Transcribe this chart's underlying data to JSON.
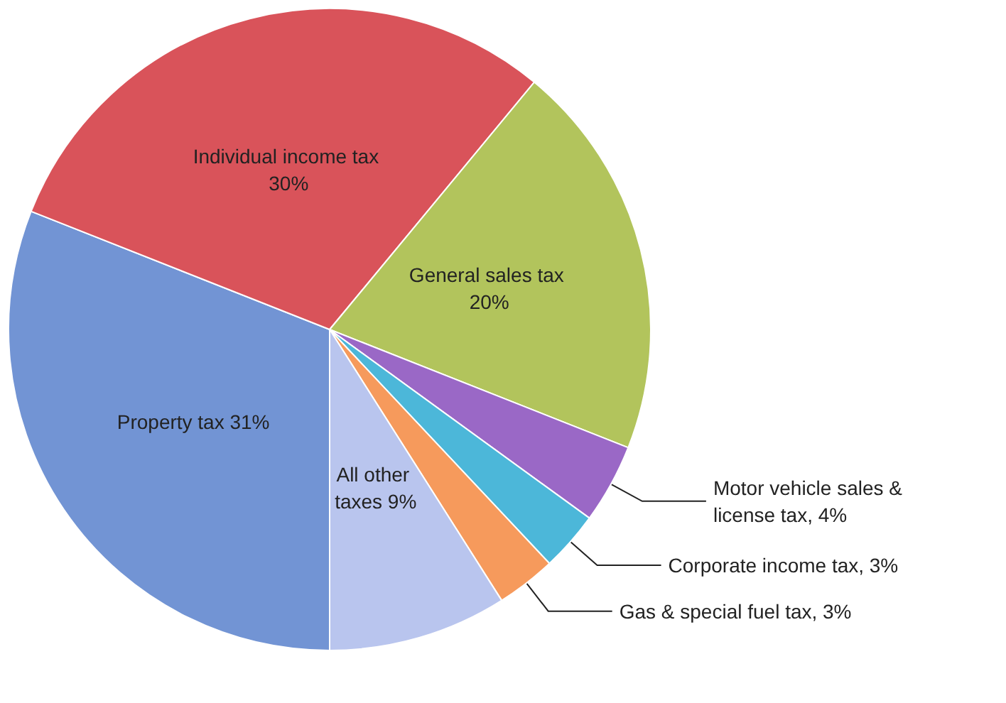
{
  "chart_data": {
    "type": "pie",
    "categories": [
      "Property tax",
      "Individual income tax",
      "General sales tax",
      "Motor vehicle sales & license tax",
      "Corporate income tax",
      "Gas & special fuel tax",
      "All other taxes"
    ],
    "values": [
      31,
      30,
      20,
      4,
      3,
      3,
      9
    ],
    "value_labels": [
      "31%",
      "30%",
      "20%",
      "4%",
      "3%",
      "3%",
      "9%"
    ],
    "colors": [
      "#7294d4",
      "#d9535a",
      "#b2c45c",
      "#9a68c6",
      "#4cb7d9",
      "#f69a5c",
      "#b9c5ee"
    ]
  }
}
